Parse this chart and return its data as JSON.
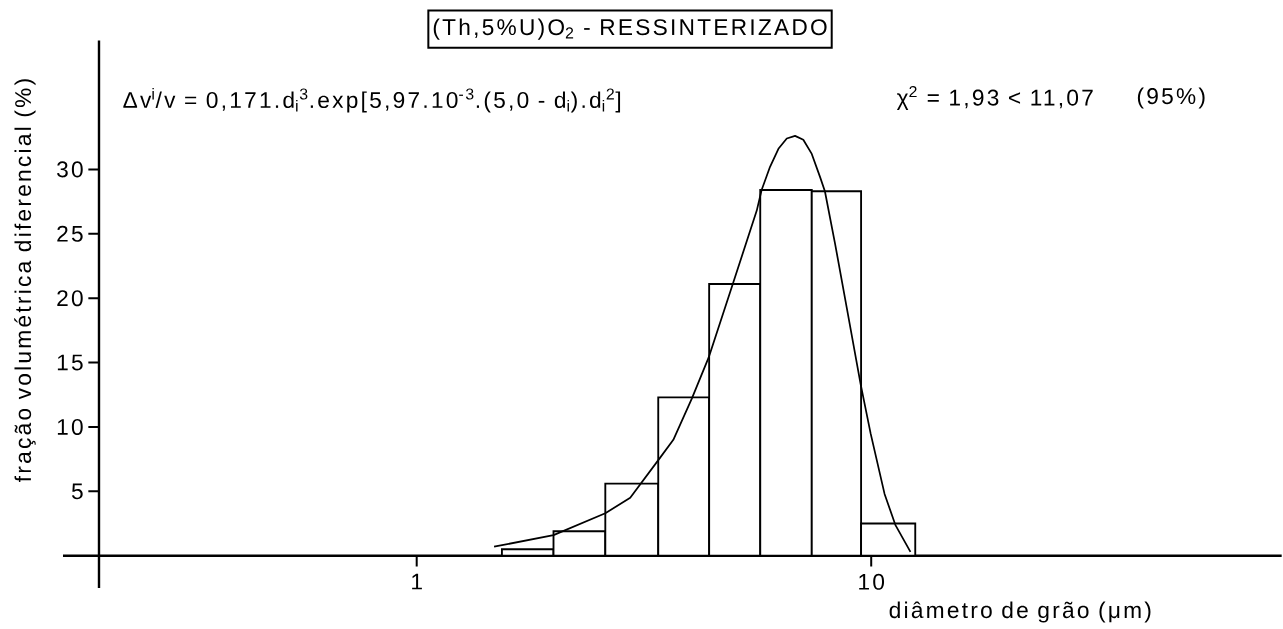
{
  "chart_data": {
    "type": "histogram",
    "title": "(Th,5%U)O$_{2}$ - RESSINTERIZADO",
    "xlabel": "diâmetro de grão (μm)",
    "ylabel": "fração volumétrica diferencial (%)",
    "annotations": [
      "Δv$^{i}$/v = 0,171.d$_{i}$$^{3}$.exp[5,97.10$^{-3}$.(5,0 - d$_{i}$).d$_{i}$$^{2}$]",
      "χ$^{2}$ = 1,93 < 11,07",
      "(95%)"
    ],
    "series": [
      {
        "bins": [
          1.54,
          2.0,
          2.6,
          3.4,
          4.4,
          5.7,
          7.4,
          9.5,
          12.5
        ],
        "values": [
          0.5,
          1.9,
          5.6,
          12.3,
          21.1,
          28.4,
          28.3,
          2.5
        ],
        "color": "#000000"
      },
      {
        "type": "line",
        "x": [
          1.48,
          2.0,
          2.6,
          2.95,
          3.43,
          3.67,
          4.03,
          4.39,
          4.97,
          5.6,
          5.74,
          5.99,
          6.25,
          6.52,
          6.8,
          7.09,
          7.4,
          7.72,
          7.91,
          8.33,
          8.83,
          9.48,
          9.97,
          10.7,
          11.3,
          12.2
        ],
        "values": [
          0.7,
          1.6,
          3.3,
          4.5,
          7.6,
          9.0,
          12.2,
          15.4,
          21.2,
          26.8,
          28.4,
          30.2,
          31.6,
          32.4,
          32.6,
          32.3,
          31.2,
          29.4,
          28.3,
          24.2,
          19.3,
          13.3,
          9.5,
          4.8,
          2.4,
          0.3
        ],
        "color": "#000000"
      }
    ],
    "xlim": [
      0.2,
      80
    ],
    "ylim": [
      -2.5,
      40
    ],
    "xticks": [
      1,
      10
    ],
    "yticks": [
      5,
      10,
      15,
      20,
      25,
      30
    ],
    "log": "x"
  }
}
